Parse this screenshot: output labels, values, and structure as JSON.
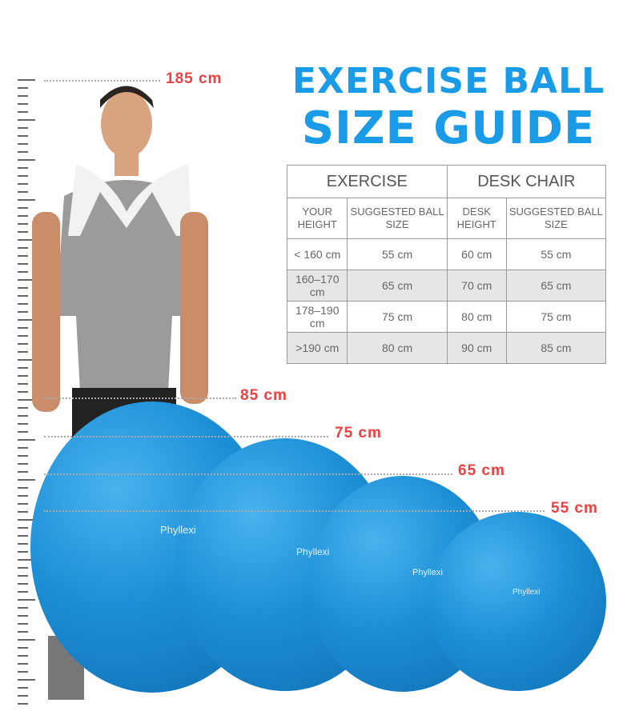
{
  "title_line1": "EXERCISE BALL",
  "title_line2": "SIZE GUIDE",
  "table": {
    "groups": [
      "EXERCISE",
      "DESK CHAIR"
    ],
    "columns": [
      "YOUR HEIGHT",
      "SUGGESTED BALL SIZE",
      "DESK HEIGHT",
      "SUGGESTED BALL SIZE"
    ],
    "rows": [
      [
        "< 160 cm",
        "55 cm",
        "60 cm",
        "55 cm"
      ],
      [
        "160–170 cm",
        "65 cm",
        "70 cm",
        "65 cm"
      ],
      [
        "178–190 cm",
        "75 cm",
        "80 cm",
        "75 cm"
      ],
      [
        ">190 cm",
        "80 cm",
        "90 cm",
        "85 cm"
      ]
    ]
  },
  "markers": {
    "height": "185 cm",
    "b85": "85 cm",
    "b75": "75 cm",
    "b65": "65 cm",
    "b55": "55 cm"
  },
  "brand": "Phyllexi",
  "colors": {
    "title": "#1a9be8",
    "marker": "#ee4040",
    "ball": "#1d8fd6"
  }
}
